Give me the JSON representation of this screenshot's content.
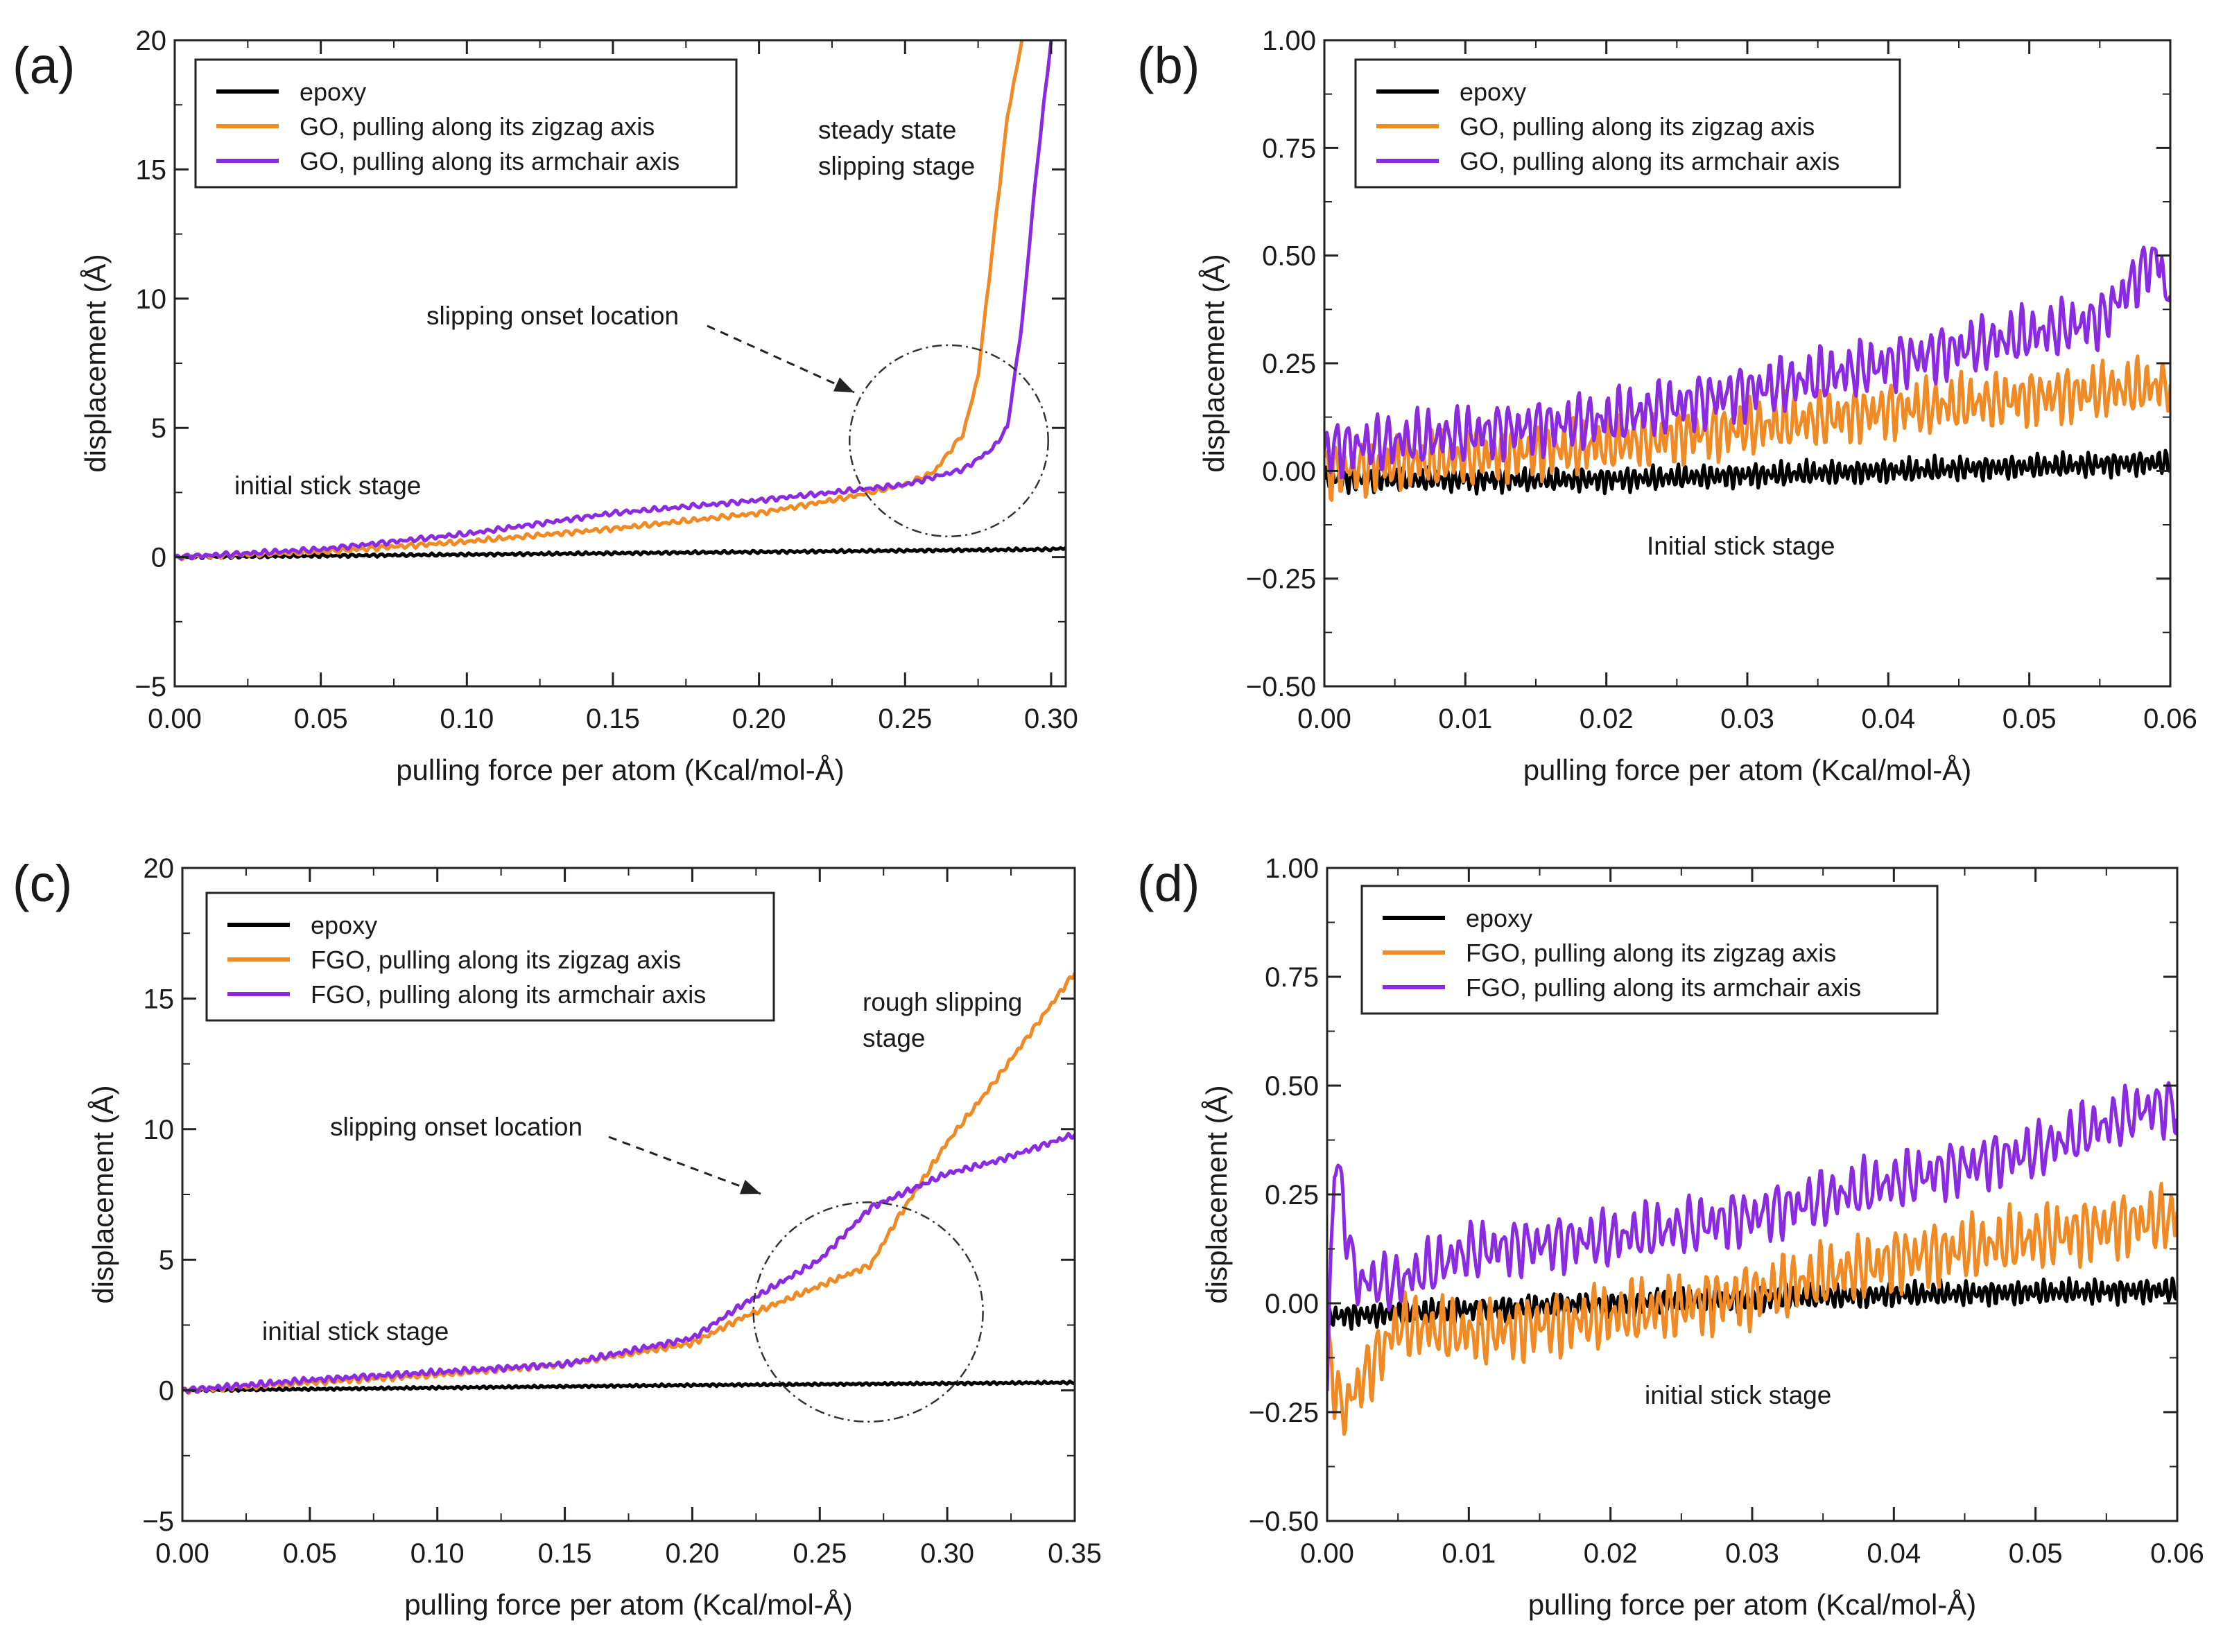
{
  "figure": {
    "colors": {
      "epoxy": "#000000",
      "zigzag": "#f08a24",
      "armchair": "#8a2be2"
    }
  },
  "chart_data": [
    {
      "panel": "(a)",
      "type": "line",
      "xlabel": "pulling force per atom (Kcal/mol-Å)",
      "ylabel": "displacement (Å)",
      "xlim": [
        0.0,
        0.305
      ],
      "ylim": [
        -5,
        20
      ],
      "xticks": [
        0.0,
        0.05,
        0.1,
        0.15,
        0.2,
        0.25,
        0.3
      ],
      "xtick_labels": [
        "0.00",
        "0.05",
        "0.10",
        "0.15",
        "0.20",
        "0.25",
        "0.30"
      ],
      "yticks": [
        -5,
        0,
        5,
        10,
        15,
        20
      ],
      "ytick_labels": [
        "−5",
        "0",
        "5",
        "10",
        "15",
        "20"
      ],
      "legend": [
        "epoxy",
        "GO, pulling along its zigzag axis",
        "GO, pulling along its armchair axis"
      ],
      "annotations": [
        "initial stick stage",
        "slipping onset location",
        "steady state",
        "slipping stage"
      ],
      "circle": {
        "center": [
          0.265,
          4.5
        ],
        "radius_x": 0.034,
        "radius_y": 3.7
      },
      "series": [
        {
          "name": "epoxy",
          "color_key": "epoxy",
          "noise": 0.06,
          "freq": 400,
          "x": [
            0.0,
            0.1,
            0.2,
            0.3,
            0.305
          ],
          "y": [
            0.0,
            0.1,
            0.2,
            0.3,
            0.35
          ]
        },
        {
          "name": "GO, pulling along its zigzag axis",
          "color_key": "zigzag",
          "noise": 0.1,
          "freq": 300,
          "x": [
            0.0,
            0.05,
            0.1,
            0.15,
            0.2,
            0.23,
            0.25,
            0.26,
            0.27,
            0.275,
            0.28,
            0.285,
            0.29
          ],
          "y": [
            0.0,
            0.2,
            0.6,
            1.1,
            1.7,
            2.3,
            2.8,
            3.3,
            4.8,
            7.0,
            12.0,
            17.0,
            20.0
          ]
        },
        {
          "name": "GO, pulling along its armchair axis",
          "color_key": "armchair",
          "noise": 0.1,
          "freq": 300,
          "x": [
            0.0,
            0.05,
            0.1,
            0.15,
            0.2,
            0.25,
            0.27,
            0.28,
            0.285,
            0.29,
            0.295,
            0.3
          ],
          "y": [
            0.0,
            0.3,
            0.9,
            1.7,
            2.2,
            2.8,
            3.4,
            4.2,
            5.0,
            9.0,
            15.0,
            20.0
          ]
        }
      ]
    },
    {
      "panel": "(b)",
      "type": "line",
      "xlabel": "pulling force per atom (Kcal/mol-Å)",
      "ylabel": "displacement (Å)",
      "xlim": [
        0.0,
        0.06
      ],
      "ylim": [
        -0.5,
        1.0
      ],
      "xticks": [
        0.0,
        0.01,
        0.02,
        0.03,
        0.04,
        0.05,
        0.06
      ],
      "xtick_labels": [
        "0.00",
        "0.01",
        "0.02",
        "0.03",
        "0.04",
        "0.05",
        "0.06"
      ],
      "yticks": [
        -0.5,
        -0.25,
        0.0,
        0.25,
        0.5,
        0.75,
        1.0
      ],
      "ytick_labels": [
        "−0.50",
        "−0.25",
        "0.00",
        "0.25",
        "0.50",
        "0.75",
        "1.00"
      ],
      "legend": [
        "epoxy",
        "GO, pulling along its zigzag axis",
        "GO, pulling along its armchair axis"
      ],
      "annotations": [
        "Initial stick stage"
      ],
      "series": [
        {
          "name": "epoxy",
          "color_key": "epoxy",
          "noise": 0.03,
          "freq": 2200,
          "x": [
            0.0,
            0.02,
            0.04,
            0.06
          ],
          "y": [
            -0.02,
            -0.02,
            0.0,
            0.02
          ]
        },
        {
          "name": "GO, pulling along its zigzag axis",
          "color_key": "zigzag",
          "noise": 0.07,
          "freq": 1600,
          "x": [
            0.0,
            0.02,
            0.04,
            0.06
          ],
          "y": [
            0.0,
            0.06,
            0.14,
            0.2
          ]
        },
        {
          "name": "GO, pulling along its armchair axis",
          "color_key": "armchair",
          "noise": 0.07,
          "freq": 1400,
          "x": [
            0.0,
            0.02,
            0.04,
            0.055,
            0.059,
            0.06
          ],
          "y": [
            0.05,
            0.12,
            0.25,
            0.35,
            0.5,
            0.4
          ]
        }
      ]
    },
    {
      "panel": "(c)",
      "type": "line",
      "xlabel": "pulling force per atom (Kcal/mol-Å)",
      "ylabel": "displacement (Å)",
      "xlim": [
        0.0,
        0.35
      ],
      "ylim": [
        -5,
        20
      ],
      "xticks": [
        0.0,
        0.05,
        0.1,
        0.15,
        0.2,
        0.25,
        0.3,
        0.35
      ],
      "xtick_labels": [
        "0.00",
        "0.05",
        "0.10",
        "0.15",
        "0.20",
        "0.25",
        "0.30",
        "0.35"
      ],
      "yticks": [
        -5,
        0,
        5,
        10,
        15,
        20
      ],
      "ytick_labels": [
        "−5",
        "0",
        "5",
        "10",
        "15",
        "20"
      ],
      "legend": [
        "epoxy",
        "FGO, pulling along its zigzag axis",
        "FGO, pulling along its armchair axis"
      ],
      "annotations": [
        "initial stick stage",
        "slipping onset location",
        "rough slipping",
        "stage"
      ],
      "circle": {
        "center": [
          0.269,
          3.0
        ],
        "radius_x": 0.045,
        "radius_y": 4.2
      },
      "series": [
        {
          "name": "epoxy",
          "color_key": "epoxy",
          "noise": 0.05,
          "freq": 400,
          "x": [
            0.0,
            0.1,
            0.2,
            0.35
          ],
          "y": [
            0.0,
            0.1,
            0.2,
            0.3
          ]
        },
        {
          "name": "FGO, pulling along its zigzag axis",
          "color_key": "zigzag",
          "noise": 0.12,
          "freq": 300,
          "x": [
            0.0,
            0.05,
            0.1,
            0.15,
            0.2,
            0.22,
            0.25,
            0.27,
            0.28,
            0.3,
            0.32,
            0.35
          ],
          "y": [
            0.0,
            0.3,
            0.6,
            1.0,
            1.8,
            2.8,
            4.0,
            4.8,
            6.5,
            9.5,
            12.0,
            16.0
          ]
        },
        {
          "name": "FGO, pulling along its armchair axis",
          "color_key": "armchair",
          "noise": 0.12,
          "freq": 300,
          "x": [
            0.0,
            0.05,
            0.1,
            0.15,
            0.2,
            0.22,
            0.25,
            0.27,
            0.3,
            0.32,
            0.35
          ],
          "y": [
            0.0,
            0.4,
            0.7,
            1.0,
            2.0,
            3.3,
            5.0,
            7.0,
            8.3,
            8.8,
            9.8
          ]
        }
      ]
    },
    {
      "panel": "(d)",
      "type": "line",
      "xlabel": "pulling force per atom (Kcal/mol-Å)",
      "ylabel": "displacement (Å)",
      "xlim": [
        0.0,
        0.06
      ],
      "ylim": [
        -0.5,
        1.0
      ],
      "xticks": [
        0.0,
        0.01,
        0.02,
        0.03,
        0.04,
        0.05,
        0.06
      ],
      "xtick_labels": [
        "0.00",
        "0.01",
        "0.02",
        "0.03",
        "0.04",
        "0.05",
        "0.06"
      ],
      "yticks": [
        -0.5,
        -0.25,
        0.0,
        0.25,
        0.5,
        0.75,
        1.0
      ],
      "ytick_labels": [
        "−0.50",
        "−0.25",
        "0.00",
        "0.25",
        "0.50",
        "0.75",
        "1.00"
      ],
      "legend": [
        "epoxy",
        "FGO, pulling along its zigzag axis",
        "FGO, pulling along its armchair axis"
      ],
      "annotations": [
        "initial stick stage"
      ],
      "series": [
        {
          "name": "epoxy",
          "color_key": "epoxy",
          "noise": 0.03,
          "freq": 2200,
          "x": [
            0.0,
            0.02,
            0.04,
            0.06
          ],
          "y": [
            -0.03,
            0.0,
            0.02,
            0.03
          ]
        },
        {
          "name": "FGO, pulling along its zigzag axis",
          "color_key": "zigzag",
          "noise": 0.08,
          "freq": 1500,
          "x": [
            0.0,
            0.001,
            0.005,
            0.01,
            0.02,
            0.03,
            0.04,
            0.05,
            0.06
          ],
          "y": [
            -0.1,
            -0.25,
            -0.05,
            -0.07,
            -0.03,
            0.02,
            0.1,
            0.15,
            0.2
          ]
        },
        {
          "name": "FGO, pulling along its armchair axis",
          "color_key": "armchair",
          "noise": 0.07,
          "freq": 1300,
          "x": [
            0.0,
            0.0005,
            0.002,
            0.005,
            0.01,
            0.02,
            0.03,
            0.04,
            0.05,
            0.058,
            0.06
          ],
          "y": [
            -0.2,
            0.35,
            0.05,
            0.05,
            0.12,
            0.15,
            0.2,
            0.28,
            0.35,
            0.45,
            0.45
          ]
        }
      ]
    }
  ]
}
